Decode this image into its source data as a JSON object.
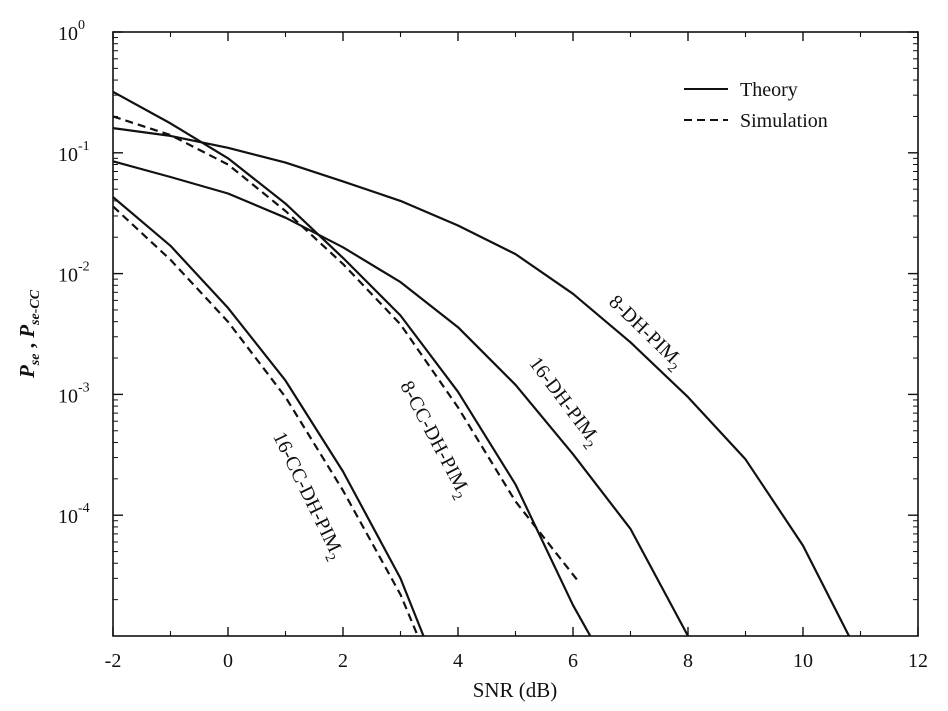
{
  "chart_data": {
    "type": "line",
    "title": "",
    "xlabel": "SNR (dB)",
    "ylabel": {
      "p1": "P",
      "s1": "se",
      "sep": " , ",
      "p2": "P",
      "s2": "se-CC"
    },
    "xlim": [
      -2,
      12
    ],
    "ylim": [
      1e-05,
      1
    ],
    "yscale": "log",
    "grid": false,
    "legend_position": "top-right",
    "x_ticks": [
      "-2",
      "0",
      "2",
      "4",
      "6",
      "8",
      "10",
      "12"
    ],
    "y_ticks": [
      {
        "value": 1,
        "base": "10",
        "exp": "0"
      },
      {
        "value": 0.1,
        "base": "10",
        "exp": "-1"
      },
      {
        "value": 0.01,
        "base": "10",
        "exp": "-2"
      },
      {
        "value": 0.001,
        "base": "10",
        "exp": "-3"
      },
      {
        "value": 0.0001,
        "base": "10",
        "exp": "-4"
      }
    ],
    "legend": [
      {
        "label": "Theory",
        "style": "solid"
      },
      {
        "label": "Simulation",
        "style": "dashed"
      }
    ],
    "series": [
      {
        "label": {
          "main": "8-DH-PIM",
          "sub": "2"
        },
        "style": "solid",
        "x": [
          -2,
          -1,
          0,
          1,
          2,
          3,
          4,
          5,
          6,
          7,
          8,
          9,
          10,
          10.8
        ],
        "y": [
          0.16,
          0.138,
          0.11,
          0.083,
          0.058,
          0.04,
          0.025,
          0.0145,
          0.0068,
          0.0027,
          0.00095,
          0.00029,
          5.6e-05,
          1e-05
        ]
      },
      {
        "label": {
          "main": "16-DH-PIM",
          "sub": "2"
        },
        "style": "solid",
        "x": [
          -2,
          -1,
          0,
          1,
          2,
          3,
          4,
          5,
          6,
          7,
          8
        ],
        "y": [
          0.085,
          0.063,
          0.046,
          0.029,
          0.0165,
          0.0085,
          0.0036,
          0.0012,
          0.00032,
          7.7e-05,
          1e-05
        ]
      },
      {
        "label": {
          "main": "8-CC-DH-PIM",
          "sub": "2"
        },
        "style": "solid",
        "x": [
          -2,
          -1,
          0,
          1,
          2,
          3,
          4,
          5,
          6,
          6.3
        ],
        "y": [
          0.32,
          0.175,
          0.09,
          0.038,
          0.0135,
          0.0045,
          0.00105,
          0.00018,
          1.8e-05,
          1e-05
        ]
      },
      {
        "label": {
          "main": "16-CC-DH-PIM",
          "sub": "2"
        },
        "style": "solid",
        "x": [
          -2,
          -1,
          0,
          1,
          2,
          3,
          3.4
        ],
        "y": [
          0.043,
          0.017,
          0.0052,
          0.0013,
          0.00023,
          3e-05,
          1e-05
        ]
      },
      {
        "label": {
          "main": "8-CC-DH-PIM",
          "sub": "2"
        },
        "style": "dashed",
        "x": [
          -2,
          -1,
          0,
          1,
          2,
          3,
          4,
          5,
          6.1
        ],
        "y": [
          0.2,
          0.14,
          0.08,
          0.033,
          0.012,
          0.0038,
          0.00078,
          0.00013,
          2.8e-05
        ]
      },
      {
        "label": {
          "main": "16-CC-DH-PIM",
          "sub": "2"
        },
        "style": "dashed",
        "x": [
          -2,
          -1,
          0,
          1,
          2,
          3,
          3.3
        ],
        "y": [
          0.036,
          0.013,
          0.004,
          0.00095,
          0.00016,
          2.2e-05,
          1e-05
        ]
      }
    ]
  }
}
